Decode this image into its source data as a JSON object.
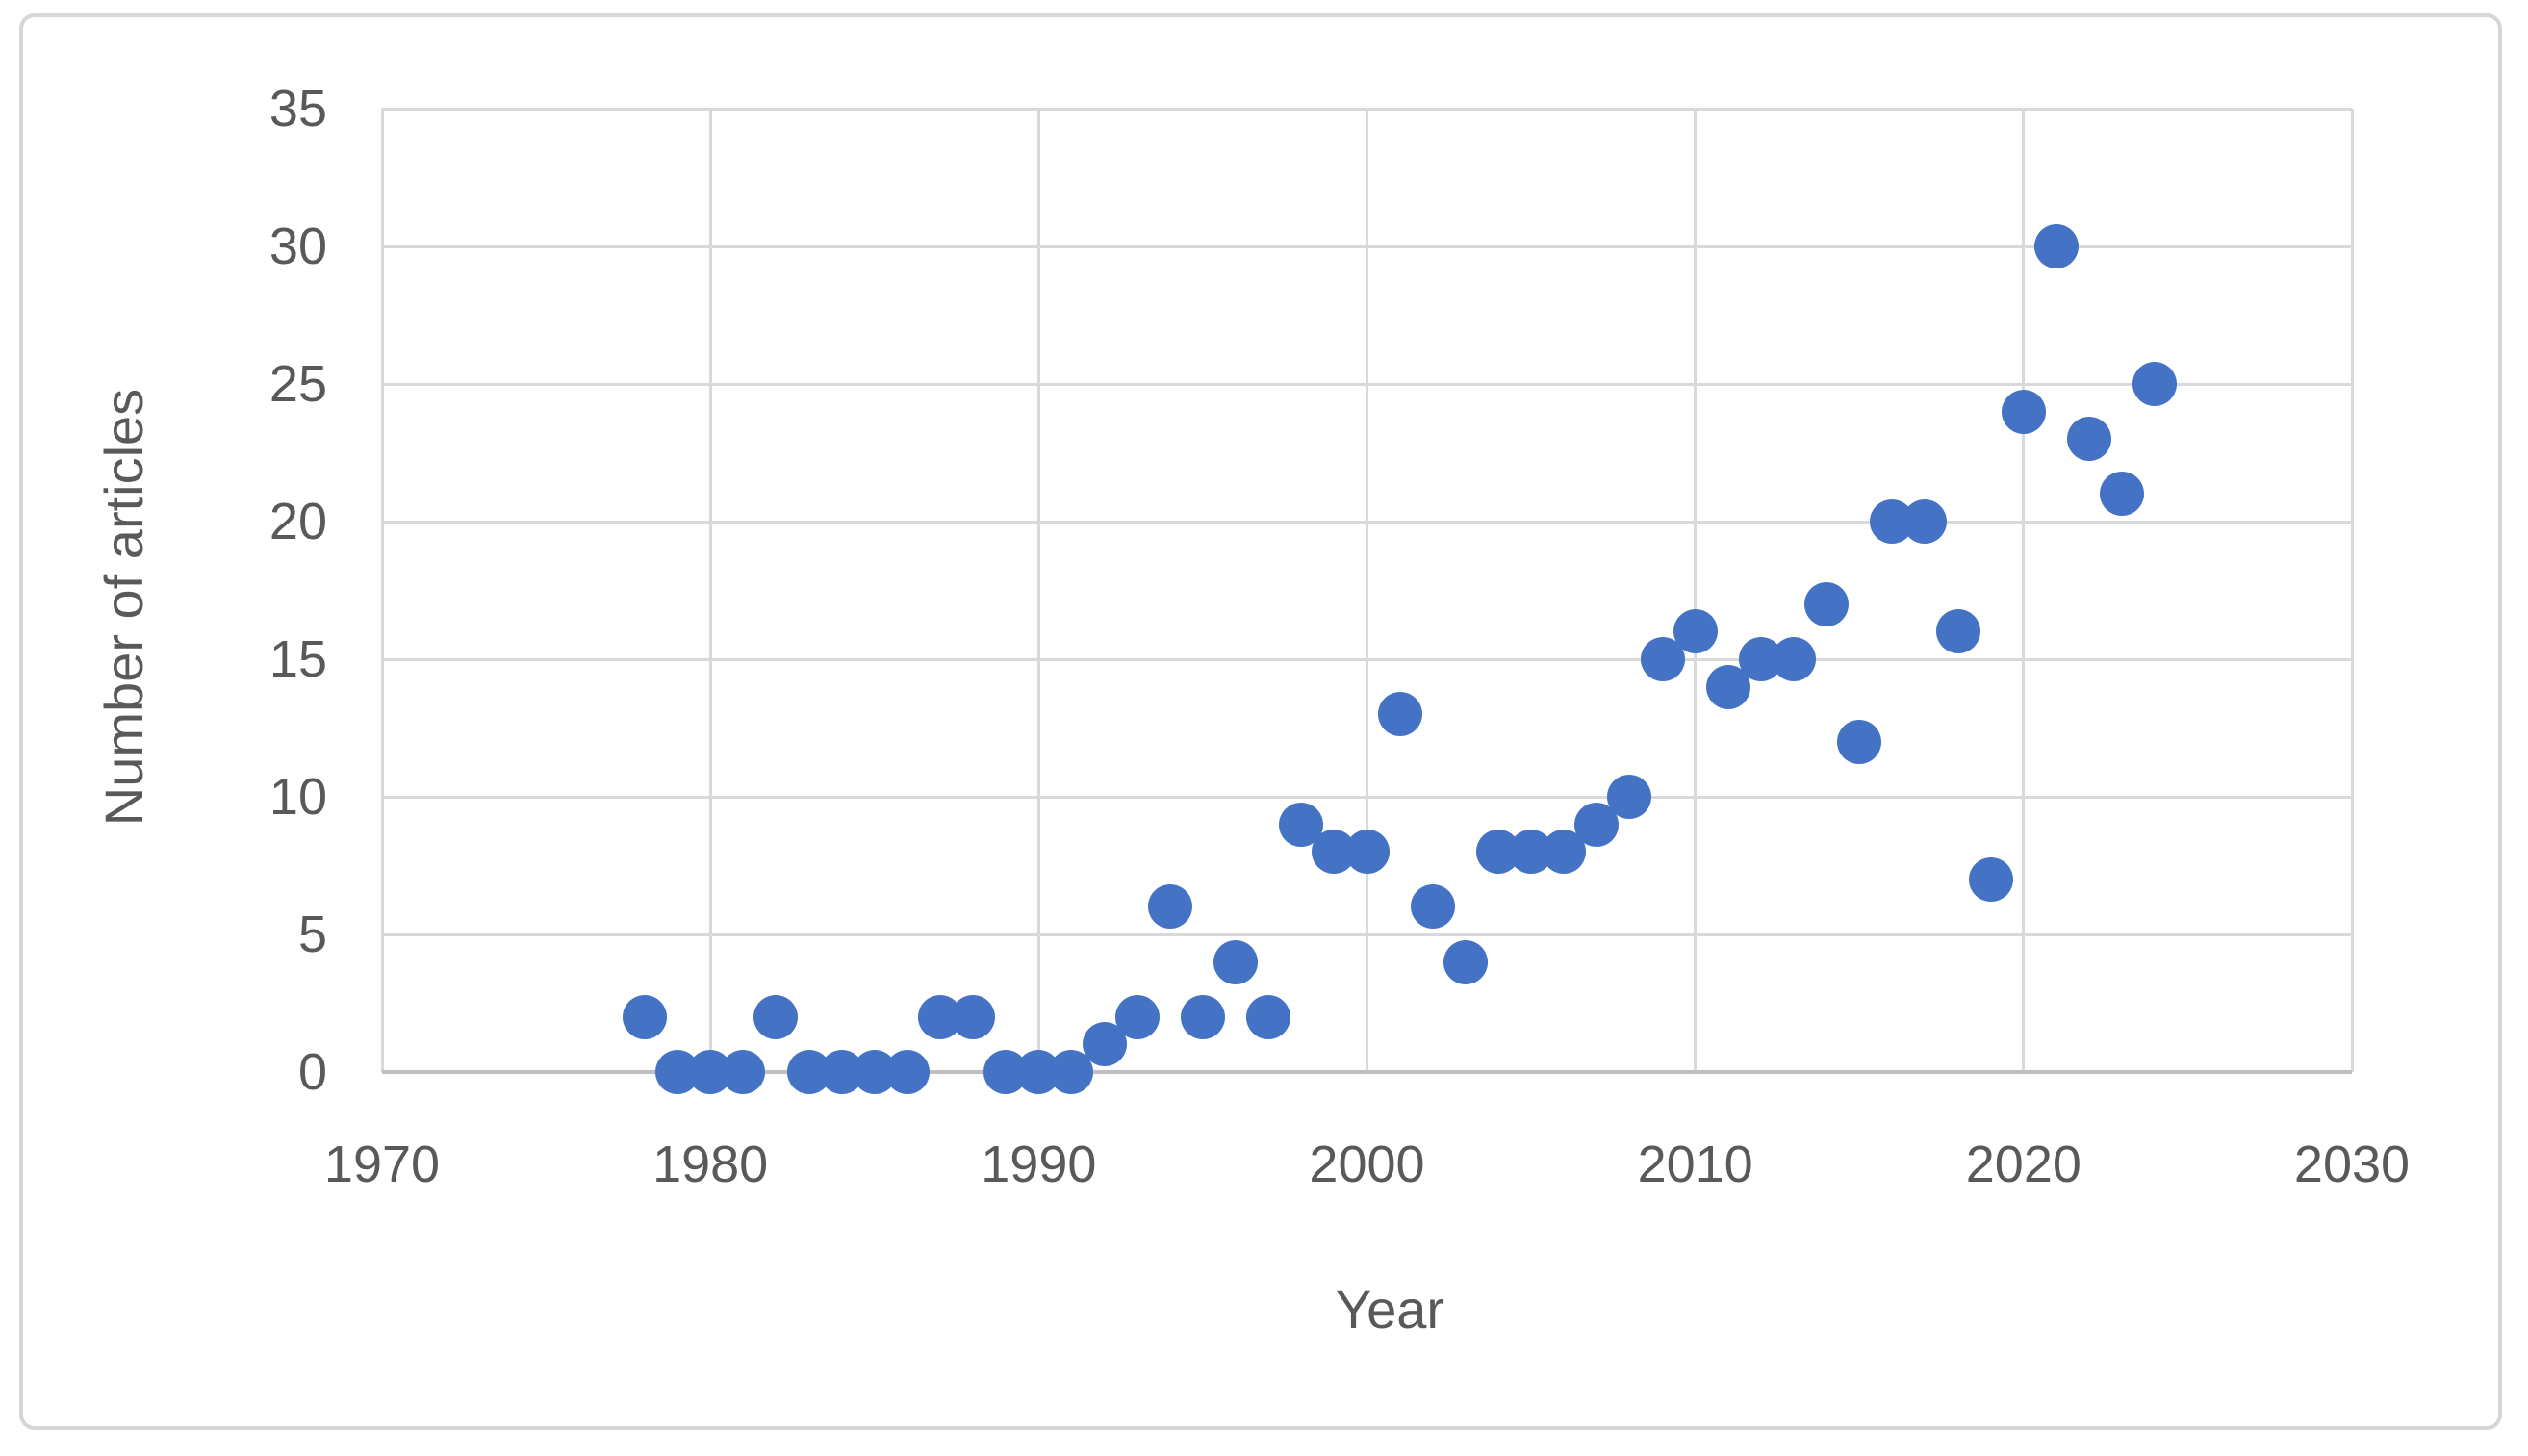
{
  "colors": {
    "marker": "#4472C4",
    "gridline": "#D9D9D9",
    "axis_line": "#BFBFBF",
    "text": "#595959",
    "frame_border": "#D6D6D6",
    "background": "#FFFFFF"
  },
  "chart_data": {
    "type": "scatter",
    "title": "",
    "xlabel": "Year",
    "ylabel": "Number of articles",
    "xlim": [
      1970,
      2030
    ],
    "ylim": [
      0,
      35
    ],
    "x_tick_step": 10,
    "y_tick_step": 5,
    "x_ticks": [
      "1970",
      "1980",
      "1990",
      "2000",
      "2010",
      "2020",
      "2030"
    ],
    "y_ticks": [
      "0",
      "5",
      "10",
      "15",
      "20",
      "25",
      "30",
      "35"
    ],
    "grid": true,
    "legend": "none",
    "series_name": "Number of articles",
    "points": [
      {
        "year": 1978,
        "value": 2
      },
      {
        "year": 1979,
        "value": 0
      },
      {
        "year": 1980,
        "value": 0
      },
      {
        "year": 1981,
        "value": 0
      },
      {
        "year": 1982,
        "value": 2
      },
      {
        "year": 1983,
        "value": 0
      },
      {
        "year": 1984,
        "value": 0
      },
      {
        "year": 1985,
        "value": 0
      },
      {
        "year": 1986,
        "value": 0
      },
      {
        "year": 1987,
        "value": 2
      },
      {
        "year": 1988,
        "value": 2
      },
      {
        "year": 1989,
        "value": 0
      },
      {
        "year": 1990,
        "value": 0
      },
      {
        "year": 1991,
        "value": 0
      },
      {
        "year": 1992,
        "value": 1
      },
      {
        "year": 1993,
        "value": 2
      },
      {
        "year": 1994,
        "value": 6
      },
      {
        "year": 1995,
        "value": 2
      },
      {
        "year": 1996,
        "value": 4
      },
      {
        "year": 1997,
        "value": 2
      },
      {
        "year": 1998,
        "value": 9
      },
      {
        "year": 1999,
        "value": 8
      },
      {
        "year": 2000,
        "value": 8
      },
      {
        "year": 2001,
        "value": 13
      },
      {
        "year": 2002,
        "value": 6
      },
      {
        "year": 2003,
        "value": 4
      },
      {
        "year": 2004,
        "value": 8
      },
      {
        "year": 2005,
        "value": 8
      },
      {
        "year": 2006,
        "value": 8
      },
      {
        "year": 2007,
        "value": 9
      },
      {
        "year": 2008,
        "value": 10
      },
      {
        "year": 2009,
        "value": 15
      },
      {
        "year": 2010,
        "value": 16
      },
      {
        "year": 2011,
        "value": 14
      },
      {
        "year": 2012,
        "value": 15
      },
      {
        "year": 2013,
        "value": 15
      },
      {
        "year": 2014,
        "value": 17
      },
      {
        "year": 2015,
        "value": 12
      },
      {
        "year": 2016,
        "value": 20
      },
      {
        "year": 2017,
        "value": 20
      },
      {
        "year": 2018,
        "value": 16
      },
      {
        "year": 2019,
        "value": 7
      },
      {
        "year": 2020,
        "value": 24
      },
      {
        "year": 2021,
        "value": 30
      },
      {
        "year": 2022,
        "value": 23
      },
      {
        "year": 2023,
        "value": 21
      },
      {
        "year": 2024,
        "value": 25
      }
    ]
  }
}
